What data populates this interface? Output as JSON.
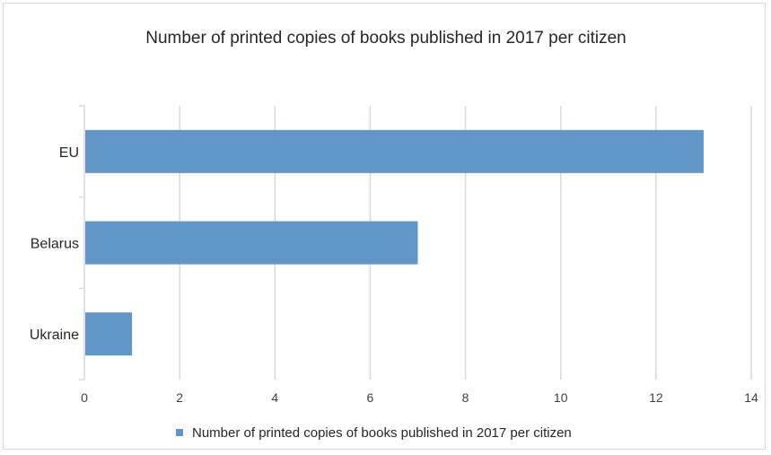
{
  "chart_data": {
    "type": "bar",
    "orientation": "horizontal",
    "title": "Number of printed copies of books published in 2017 per citizen",
    "categories": [
      "EU",
      "Belarus",
      "Ukraine"
    ],
    "series": [
      {
        "name": "Number of printed copies of books published in 2017 per citizen",
        "values": [
          13,
          7,
          1
        ],
        "color": "#6196c9"
      }
    ],
    "xlim": [
      0,
      14
    ],
    "x_ticks": [
      "0",
      "2",
      "4",
      "6",
      "8",
      "10",
      "12",
      "14"
    ],
    "grid": "vertical",
    "legend_position": "bottom"
  }
}
